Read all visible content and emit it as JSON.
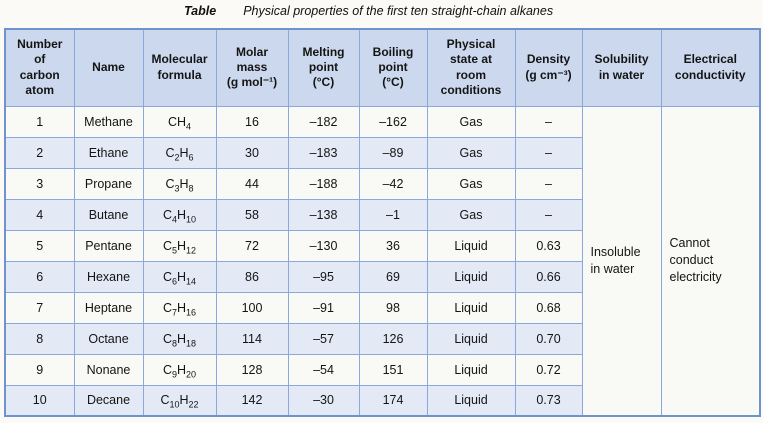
{
  "page": {
    "title_label": "Table",
    "title_text": "Physical properties of the first ten straight-chain alkanes"
  },
  "colors": {
    "header_bg": "#ccd8ed",
    "row_bg": "#f9f9f5",
    "row_alt_bg": "#e3eaf6",
    "grid_line": "#8aa8da",
    "outer_border": "#6f93cf"
  },
  "table": {
    "headers": [
      {
        "id": "carbon-atoms",
        "label": "Number\nof\ncarbon\natom"
      },
      {
        "id": "name",
        "label": "Name"
      },
      {
        "id": "molecular-formula",
        "label": "Molecular\nformula"
      },
      {
        "id": "molar-mass",
        "label": "Molar\nmass\n(g mol⁻¹)"
      },
      {
        "id": "melting-point",
        "label": "Melting\npoint\n(°C)"
      },
      {
        "id": "boiling-point",
        "label": "Boiling\npoint\n(°C)"
      },
      {
        "id": "physical-state",
        "label": "Physical\nstate at\nroom\nconditions"
      },
      {
        "id": "density",
        "label": "Density\n(g cm⁻³)"
      },
      {
        "id": "solubility",
        "label": "Solubility\nin water"
      },
      {
        "id": "conductivity",
        "label": "Electrical\nconductivity"
      }
    ],
    "rows": [
      {
        "number": "1",
        "name": "Methane",
        "formula": "CH4",
        "molar_mass": "16",
        "melting_point": "–182",
        "boiling_point": "–162",
        "physical_state": "Gas",
        "density": "–"
      },
      {
        "number": "2",
        "name": "Ethane",
        "formula": "C2H6",
        "molar_mass": "30",
        "melting_point": "–183",
        "boiling_point": "–89",
        "physical_state": "Gas",
        "density": "–"
      },
      {
        "number": "3",
        "name": "Propane",
        "formula": "C3H8",
        "molar_mass": "44",
        "melting_point": "–188",
        "boiling_point": "–42",
        "physical_state": "Gas",
        "density": "–"
      },
      {
        "number": "4",
        "name": "Butane",
        "formula": "C4H10",
        "molar_mass": "58",
        "melting_point": "–138",
        "boiling_point": "–1",
        "physical_state": "Gas",
        "density": "–"
      },
      {
        "number": "5",
        "name": "Pentane",
        "formula": "C5H12",
        "molar_mass": "72",
        "melting_point": "–130",
        "boiling_point": "36",
        "physical_state": "Liquid",
        "density": "0.63"
      },
      {
        "number": "6",
        "name": "Hexane",
        "formula": "C6H14",
        "molar_mass": "86",
        "melting_point": "–95",
        "boiling_point": "69",
        "physical_state": "Liquid",
        "density": "0.66"
      },
      {
        "number": "7",
        "name": "Heptane",
        "formula": "C7H16",
        "molar_mass": "100",
        "melting_point": "–91",
        "boiling_point": "98",
        "physical_state": "Liquid",
        "density": "0.68"
      },
      {
        "number": "8",
        "name": "Octane",
        "formula": "C8H18",
        "molar_mass": "114",
        "melting_point": "–57",
        "boiling_point": "126",
        "physical_state": "Liquid",
        "density": "0.70"
      },
      {
        "number": "9",
        "name": "Nonane",
        "formula": "C9H20",
        "molar_mass": "128",
        "melting_point": "–54",
        "boiling_point": "151",
        "physical_state": "Liquid",
        "density": "0.72"
      },
      {
        "number": "10",
        "name": "Decane",
        "formula": "C10H22",
        "molar_mass": "142",
        "melting_point": "–30",
        "boiling_point": "174",
        "physical_state": "Liquid",
        "density": "0.73"
      }
    ],
    "merged": {
      "solubility": "Insoluble\nin water",
      "conductivity": "Cannot\nconduct\nelectricity"
    }
  }
}
